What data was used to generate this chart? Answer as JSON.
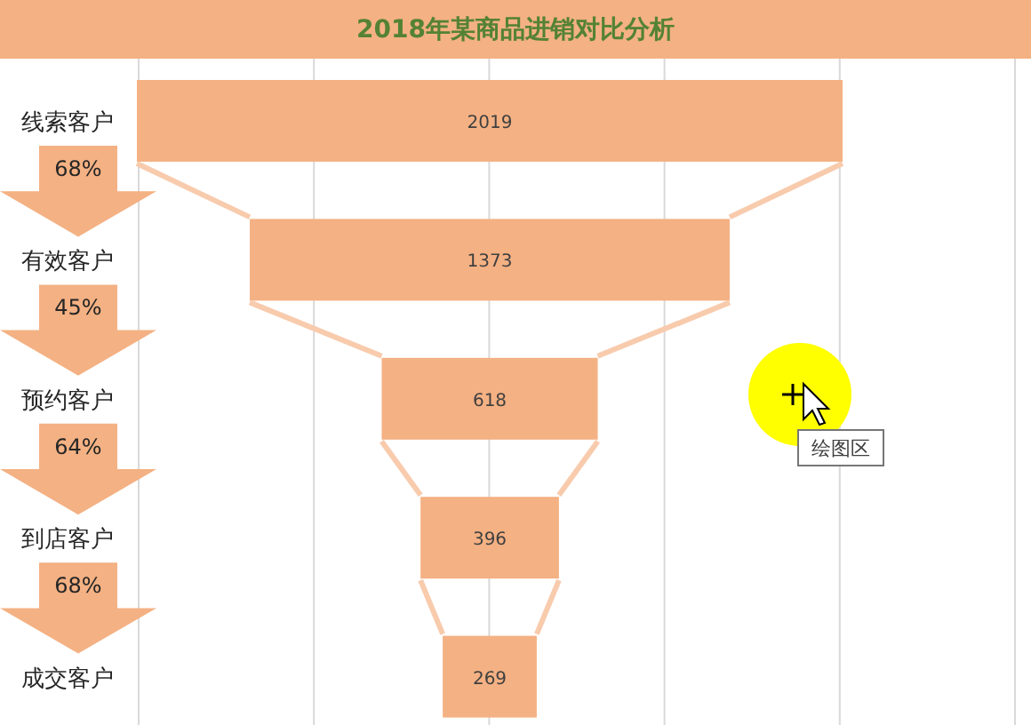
{
  "chart_data": {
    "type": "other",
    "title": "2018年某商品进销对比分析",
    "categories": [
      "线索客户",
      "有效客户",
      "预约客户",
      "到店客户",
      "成交客户"
    ],
    "values": [
      2019,
      1373,
      618,
      396,
      269
    ],
    "color": "#f4b183",
    "data_labels": true,
    "annotations": [
      "68%",
      "45%",
      "64%",
      "68%",
      "绘图区"
    ]
  }
}
